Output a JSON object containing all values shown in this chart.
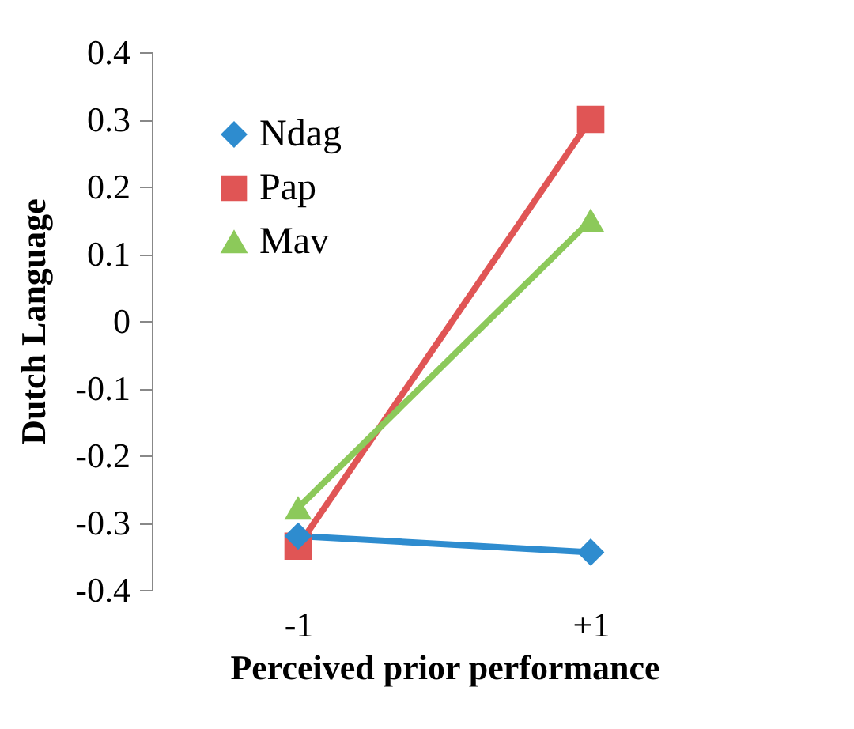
{
  "chart_data": {
    "type": "line",
    "xlabel": "Perceived prior performance",
    "ylabel": "Dutch Language",
    "categories": [
      "-1",
      "+1"
    ],
    "series": [
      {
        "name": "Ndag",
        "color": "#2e8ccf",
        "marker": "diamond",
        "values": [
          -0.32,
          -0.344
        ]
      },
      {
        "name": "Pap",
        "color": "#e05555",
        "marker": "square",
        "values": [
          -0.335,
          0.3
        ]
      },
      {
        "name": "Mav",
        "color": "#8cc95a",
        "marker": "triangle",
        "values": [
          -0.278,
          0.15
        ]
      }
    ],
    "ylim": [
      -0.4,
      0.4
    ],
    "yticks": [
      -0.4,
      -0.3,
      -0.2,
      -0.1,
      0,
      0.1,
      0.2,
      0.3,
      0.4
    ],
    "grid": false,
    "legend": "top left",
    "line_style": "solid"
  }
}
